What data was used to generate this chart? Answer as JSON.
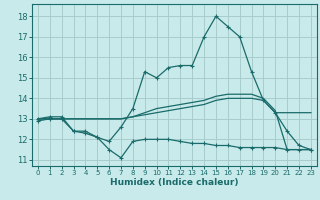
{
  "xlabel": "Humidex (Indice chaleur)",
  "ylabel": "",
  "background_color": "#c9eaea",
  "grid_color": "#a8cccc",
  "line_color": "#1a6b6b",
  "xlim": [
    -0.5,
    23.5
  ],
  "ylim": [
    10.7,
    18.6
  ],
  "xticks": [
    0,
    1,
    2,
    3,
    4,
    5,
    6,
    7,
    8,
    9,
    10,
    11,
    12,
    13,
    14,
    15,
    16,
    17,
    18,
    19,
    20,
    21,
    22,
    23
  ],
  "yticks": [
    11,
    12,
    13,
    14,
    15,
    16,
    17,
    18
  ],
  "series1_x": [
    0,
    1,
    2,
    3,
    4,
    5,
    6,
    7,
    8,
    9,
    10,
    11,
    12,
    13,
    14,
    15,
    16,
    17,
    18,
    19,
    20,
    21,
    22,
    23
  ],
  "series1_y": [
    13.0,
    13.0,
    13.0,
    13.0,
    13.0,
    13.0,
    13.0,
    13.0,
    13.1,
    13.2,
    13.3,
    13.4,
    13.5,
    13.6,
    13.7,
    13.9,
    14.0,
    14.0,
    14.0,
    13.9,
    13.3,
    13.3,
    13.3,
    13.3
  ],
  "series2_x": [
    0,
    1,
    2,
    3,
    4,
    5,
    6,
    7,
    8,
    9,
    10,
    11,
    12,
    13,
    14,
    15,
    16,
    17,
    18,
    19,
    20,
    21,
    22,
    23
  ],
  "series2_y": [
    13.0,
    13.0,
    13.0,
    13.0,
    13.0,
    13.0,
    13.0,
    13.0,
    13.1,
    13.3,
    13.5,
    13.6,
    13.7,
    13.8,
    13.9,
    14.1,
    14.2,
    14.2,
    14.2,
    14.0,
    13.4,
    11.5,
    11.5,
    11.5
  ],
  "series3_x": [
    0,
    1,
    2,
    3,
    4,
    5,
    6,
    7,
    8,
    9,
    10,
    11,
    12,
    13,
    14,
    15,
    16,
    17,
    18,
    19,
    20,
    21,
    22,
    23
  ],
  "series3_y": [
    13.0,
    13.1,
    13.1,
    12.4,
    12.4,
    12.1,
    11.9,
    12.6,
    13.5,
    15.3,
    15.0,
    15.5,
    15.6,
    15.6,
    17.0,
    18.0,
    17.5,
    17.0,
    15.3,
    13.9,
    13.3,
    12.4,
    11.7,
    11.5
  ],
  "series4_x": [
    0,
    1,
    2,
    3,
    4,
    5,
    6,
    7,
    8,
    9,
    10,
    11,
    12,
    13,
    14,
    15,
    16,
    17,
    18,
    19,
    20,
    21,
    22,
    23
  ],
  "series4_y": [
    12.9,
    13.0,
    13.0,
    12.4,
    12.3,
    12.1,
    11.5,
    11.1,
    11.9,
    12.0,
    12.0,
    12.0,
    11.9,
    11.8,
    11.8,
    11.7,
    11.7,
    11.6,
    11.6,
    11.6,
    11.6,
    11.5,
    11.5,
    11.5
  ]
}
